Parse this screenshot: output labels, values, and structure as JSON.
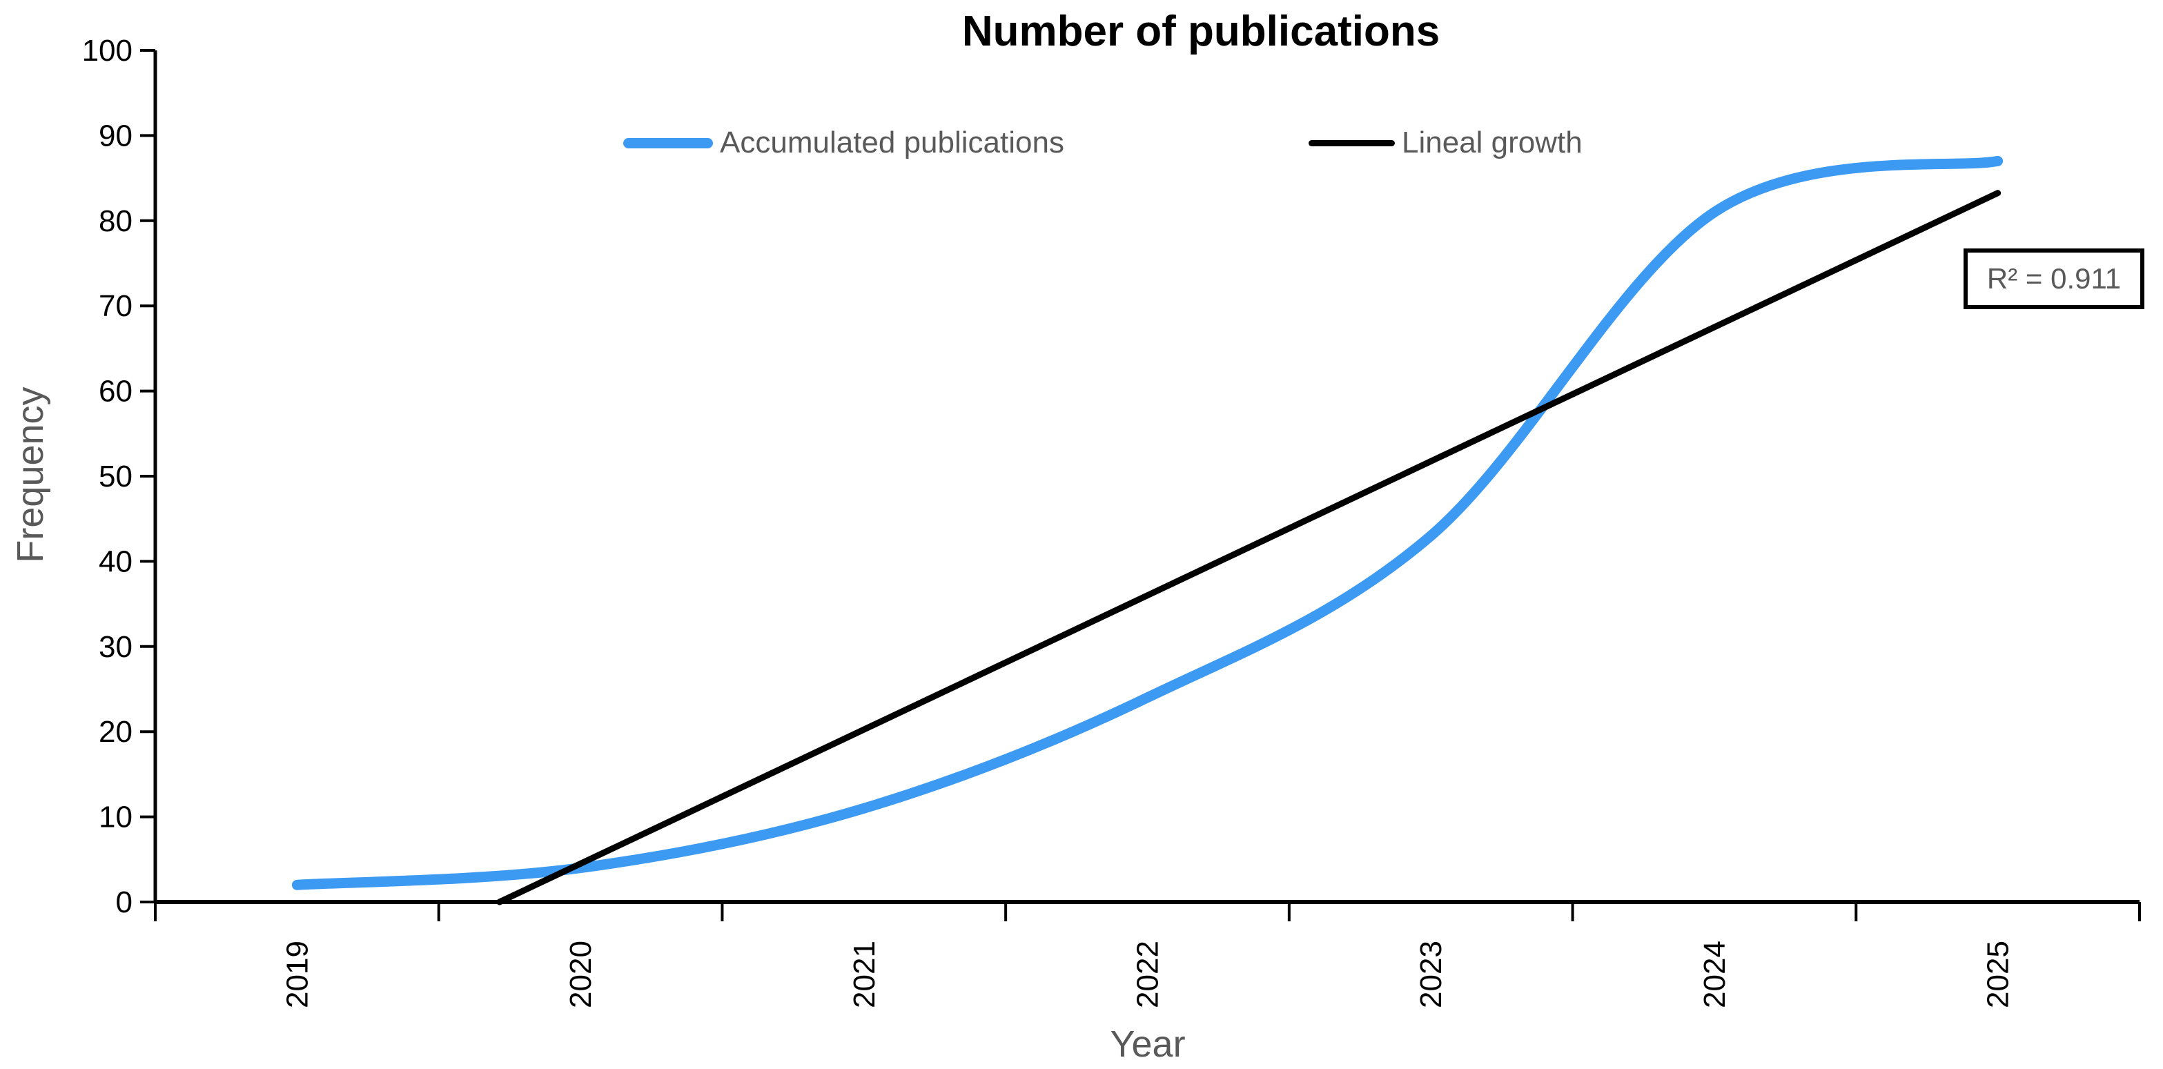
{
  "chart_data": {
    "type": "line",
    "title": "Number of publications",
    "xlabel": "Year",
    "ylabel": "Frequency",
    "categories": [
      "2019",
      "2020",
      "2021",
      "2022",
      "2023",
      "2024",
      "2025"
    ],
    "series": [
      {
        "name": "Accumulated publications",
        "type": "line",
        "smooth": true,
        "color": "#3d9af2",
        "stroke_width": 15,
        "values": [
          2,
          4,
          11,
          24,
          43,
          81,
          87
        ]
      },
      {
        "name": "Lineal growth",
        "type": "trendline",
        "color": "#000000",
        "stroke_width": 9,
        "equation": "y = 15.75x - 27",
        "r_squared": 0.911,
        "start": {
          "category_position": 1.7143,
          "value": 0
        },
        "end": {
          "category_position": 7,
          "value": 83.25
        }
      }
    ],
    "ylim": [
      0,
      100
    ],
    "ytick_step": 10,
    "x_tick_label_rotation": -90,
    "grid": false,
    "legend_position": "top-center",
    "axis_color": "#000000",
    "tick_label_color": "#000000",
    "axis_title_color": "#595959",
    "annotations": [
      {
        "text": "R² = 0.911",
        "border_color": "#000000",
        "text_color": "#595959"
      }
    ]
  }
}
